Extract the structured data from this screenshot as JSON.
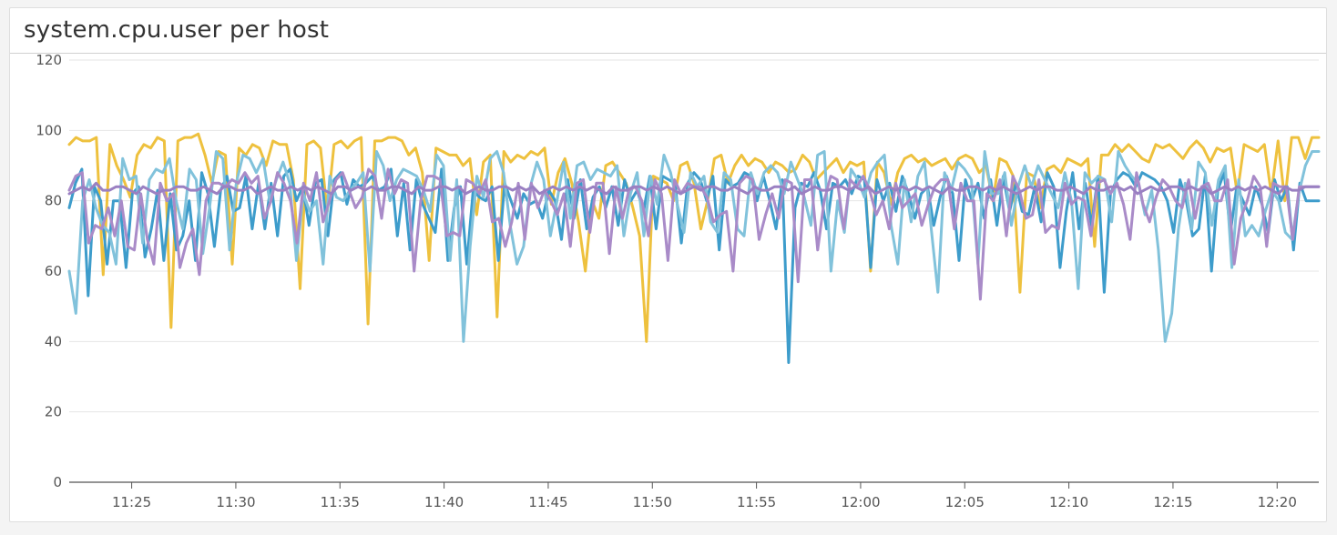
{
  "widget": {
    "title": "system.cpu.user per host"
  },
  "chart_data": {
    "type": "line",
    "title": "system.cpu.user per host",
    "xlabel": "",
    "ylabel": "",
    "ylim": [
      0,
      120
    ],
    "yticks": [
      "0",
      "20",
      "40",
      "60",
      "80",
      "100",
      "120"
    ],
    "xlim": [
      "11:22",
      "12:22"
    ],
    "xticks": [
      "11:25",
      "11:30",
      "11:35",
      "11:40",
      "11:45",
      "11:50",
      "11:55",
      "12:00",
      "12:05",
      "12:10",
      "12:15",
      "12:20"
    ],
    "grid": "horizontal",
    "legend": "none",
    "series": [
      {
        "color": "#eec13e",
        "values": [
          96,
          98,
          97,
          97,
          98,
          59,
          96,
          90,
          86,
          81,
          93,
          96,
          95,
          98,
          97,
          44,
          97,
          98,
          98,
          99,
          93,
          85,
          94,
          93,
          62,
          95,
          93,
          96,
          95,
          90,
          97,
          96,
          96,
          86,
          55,
          96,
          97,
          95,
          77,
          96,
          97,
          95,
          97,
          98,
          45,
          97,
          97,
          98,
          98,
          97,
          93,
          95,
          88,
          63,
          95,
          94,
          93,
          93,
          90,
          92,
          76,
          91,
          93,
          47,
          94,
          91,
          93,
          92,
          94,
          93,
          95,
          79,
          88,
          92,
          85,
          74,
          60,
          80,
          75,
          90,
          91,
          88,
          85,
          78,
          70,
          40,
          87,
          86,
          85,
          80,
          90,
          91,
          85,
          72,
          80,
          92,
          93,
          85,
          90,
          93,
          90,
          92,
          91,
          88,
          91,
          90,
          88,
          89,
          93,
          91,
          86,
          88,
          90,
          92,
          88,
          91,
          90,
          91,
          60,
          91,
          88,
          79,
          88,
          92,
          93,
          91,
          92,
          90,
          91,
          92,
          89,
          92,
          93,
          92,
          88,
          90,
          80,
          92,
          91,
          87,
          54,
          88,
          87,
          78,
          89,
          90,
          88,
          92,
          91,
          90,
          92,
          67,
          93,
          93,
          96,
          94,
          96,
          94,
          92,
          91,
          96,
          95,
          96,
          94,
          92,
          95,
          97,
          95,
          91,
          95,
          94,
          95,
          82,
          96,
          95,
          94,
          96,
          82,
          97,
          80,
          98,
          98,
          92,
          98,
          98
        ]
      },
      {
        "color": "#3d9ccb",
        "values": [
          78,
          85,
          89,
          53,
          84,
          80,
          62,
          80,
          80,
          61,
          82,
          84,
          64,
          72,
          83,
          63,
          82,
          66,
          70,
          80,
          63,
          88,
          82,
          67,
          83,
          87,
          77,
          78,
          87,
          72,
          85,
          72,
          85,
          70,
          87,
          89,
          80,
          84,
          73,
          85,
          86,
          70,
          86,
          88,
          79,
          86,
          84,
          85,
          87,
          83,
          84,
          89,
          70,
          85,
          66,
          86,
          79,
          75,
          71,
          89,
          63,
          78,
          84,
          62,
          83,
          81,
          80,
          84,
          63,
          85,
          80,
          75,
          82,
          79,
          80,
          75,
          83,
          80,
          69,
          86,
          75,
          86,
          72,
          81,
          84,
          78,
          84,
          73,
          86,
          80,
          83,
          77,
          87,
          72,
          87,
          86,
          85,
          68,
          85,
          88,
          86,
          80,
          87,
          66,
          86,
          84,
          85,
          88,
          87,
          80,
          87,
          80,
          72,
          86,
          34,
          78,
          85,
          84,
          88,
          83,
          72,
          85,
          84,
          86,
          82,
          87,
          86,
          61,
          86,
          80,
          85,
          77,
          87,
          82,
          75,
          82,
          84,
          73,
          81,
          87,
          82,
          63,
          86,
          80,
          85,
          75,
          86,
          73,
          87,
          77,
          85,
          77,
          76,
          84,
          74,
          88,
          84,
          61,
          77,
          88,
          72,
          85,
          73,
          87,
          54,
          82,
          86,
          88,
          87,
          84,
          88,
          87,
          86,
          84,
          80,
          71,
          86,
          80,
          70,
          72,
          87,
          60,
          83,
          88,
          71,
          84,
          80,
          76,
          84,
          79,
          71,
          86,
          80,
          84,
          66,
          85,
          80,
          80,
          80
        ]
      },
      {
        "color": "#81c2db",
        "values": [
          60,
          48,
          80,
          86,
          78,
          73,
          71,
          62,
          92,
          86,
          87,
          68,
          86,
          89,
          88,
          92,
          80,
          72,
          89,
          86,
          65,
          78,
          94,
          92,
          66,
          85,
          93,
          92,
          88,
          92,
          80,
          86,
          91,
          85,
          63,
          82,
          77,
          80,
          62,
          87,
          81,
          80,
          83,
          85,
          88,
          60,
          94,
          90,
          80,
          86,
          89,
          88,
          87,
          83,
          77,
          93,
          90,
          63,
          86,
          40,
          67,
          87,
          81,
          92,
          94,
          88,
          73,
          62,
          67,
          84,
          91,
          86,
          70,
          80,
          91,
          75,
          90,
          91,
          86,
          89,
          88,
          87,
          90,
          70,
          82,
          88,
          70,
          87,
          79,
          93,
          88,
          79,
          71,
          88,
          84,
          87,
          74,
          71,
          88,
          86,
          72,
          70,
          88,
          82,
          88,
          90,
          88,
          82,
          91,
          86,
          81,
          73,
          93,
          94,
          60,
          80,
          71,
          89,
          86,
          81,
          88,
          91,
          93,
          73,
          62,
          86,
          74,
          87,
          91,
          72,
          54,
          88,
          83,
          91,
          89,
          86,
          62,
          94,
          82,
          82,
          88,
          73,
          84,
          90,
          84,
          90,
          86,
          82,
          78,
          88,
          80,
          55,
          88,
          85,
          87,
          86,
          74,
          94,
          90,
          87,
          85,
          76,
          83,
          66,
          40,
          48,
          72,
          85,
          72,
          91,
          88,
          73,
          86,
          90,
          61,
          86,
          70,
          73,
          70,
          77,
          83,
          80,
          71,
          69,
          82,
          90,
          94,
          94
        ]
      },
      {
        "color": "#a98bc8",
        "values": [
          83,
          87,
          88,
          68,
          73,
          72,
          78,
          70,
          80,
          67,
          66,
          82,
          69,
          62,
          85,
          80,
          82,
          61,
          68,
          72,
          59,
          80,
          85,
          85,
          84,
          86,
          85,
          88,
          85,
          87,
          75,
          80,
          88,
          85,
          80,
          68,
          85,
          80,
          88,
          74,
          80,
          86,
          88,
          83,
          78,
          81,
          89,
          87,
          75,
          89,
          82,
          86,
          85,
          60,
          80,
          87,
          87,
          86,
          70,
          71,
          70,
          86,
          85,
          82,
          86,
          74,
          75,
          67,
          74,
          85,
          69,
          85,
          78,
          83,
          80,
          76,
          82,
          67,
          85,
          86,
          71,
          85,
          85,
          65,
          84,
          75,
          83,
          84,
          80,
          70,
          86,
          82,
          63,
          86,
          82,
          85,
          84,
          84,
          81,
          74,
          76,
          77,
          60,
          85,
          87,
          86,
          69,
          76,
          82,
          75,
          86,
          85,
          57,
          86,
          86,
          66,
          80,
          87,
          86,
          72,
          86,
          84,
          87,
          83,
          76,
          80,
          72,
          85,
          78,
          80,
          82,
          73,
          79,
          84,
          86,
          86,
          72,
          85,
          80,
          80,
          52,
          82,
          80,
          86,
          70,
          87,
          83,
          75,
          76,
          86,
          71,
          73,
          72,
          85,
          79,
          81,
          80,
          70,
          85,
          86,
          82,
          85,
          79,
          69,
          88,
          79,
          74,
          81,
          86,
          84,
          80,
          78,
          86,
          75,
          84,
          85,
          80,
          80,
          86,
          62,
          75,
          80,
          87,
          84,
          67,
          85,
          84,
          84,
          69,
          84,
          84,
          84,
          84
        ]
      },
      {
        "color": "#9a80c2",
        "values": [
          82,
          83,
          84,
          83,
          85,
          83,
          83,
          84,
          84,
          83,
          82,
          84,
          83,
          82,
          83,
          83,
          84,
          84,
          83,
          83,
          84,
          83,
          82,
          84,
          84,
          83,
          83,
          84,
          82,
          83,
          84,
          83,
          83,
          84,
          83,
          84,
          83,
          84,
          83,
          82,
          84,
          84,
          83,
          84,
          83,
          84,
          83,
          83,
          84,
          84,
          83,
          82,
          84,
          83,
          83,
          84,
          84,
          83,
          84,
          82,
          83,
          84,
          83,
          83,
          84,
          84,
          83,
          84,
          83,
          84,
          82,
          83,
          84,
          83,
          84,
          83,
          84,
          83,
          84,
          83,
          82,
          84,
          83,
          83,
          84,
          84,
          83,
          84,
          83,
          84,
          83,
          82,
          83,
          84,
          83,
          84,
          84,
          83,
          83,
          84,
          83,
          82,
          84,
          83,
          83,
          84,
          84,
          83,
          84,
          82,
          83,
          84,
          83,
          83,
          84,
          84,
          83,
          84,
          83,
          84,
          82,
          83,
          84,
          83,
          84,
          83,
          84,
          83,
          84,
          83,
          82,
          84,
          83,
          83,
          84,
          84,
          83,
          84,
          83,
          84,
          83,
          82,
          83,
          84,
          83,
          84,
          84,
          83,
          83,
          84,
          83,
          82,
          84,
          83,
          83,
          84,
          84,
          83,
          84,
          82,
          83,
          84,
          83,
          83,
          84,
          84,
          83,
          84,
          83,
          84,
          82,
          83,
          84,
          83,
          84,
          83,
          84,
          83,
          84,
          83,
          82,
          84,
          83,
          83,
          84,
          84,
          84
        ]
      }
    ]
  }
}
